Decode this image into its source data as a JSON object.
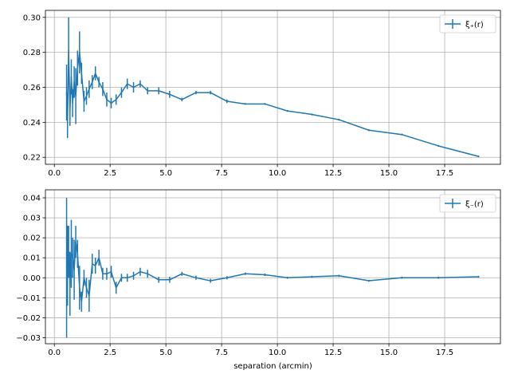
{
  "chart_data": [
    {
      "type": "line",
      "title": "",
      "xlabel": "",
      "ylabel": "",
      "grid": true,
      "legend_position": "top-right",
      "legend_label": "ξ₊(r)",
      "color": "#1f77b4",
      "xlim": [
        -0.4,
        20.0
      ],
      "ylim": [
        0.216,
        0.304
      ],
      "xticks": [
        0.0,
        2.5,
        5.0,
        7.5,
        10.0,
        12.5,
        15.0,
        17.5
      ],
      "xtick_labels": [
        "0.0",
        "2.5",
        "5.0",
        "7.5",
        "10.0",
        "12.5",
        "15.0",
        "17.5"
      ],
      "yticks": [
        0.22,
        0.24,
        0.26,
        0.28,
        0.3
      ],
      "ytick_labels": [
        "0.22",
        "0.24",
        "0.26",
        "0.28",
        "0.30"
      ],
      "series": [
        {
          "x": [
            0.55,
            0.59,
            0.64,
            0.7,
            0.76,
            0.82,
            0.89,
            0.96,
            1.04,
            1.13,
            1.22,
            1.33,
            1.44,
            1.56,
            1.7,
            1.84,
            2.0,
            2.17,
            2.35,
            2.55,
            2.77,
            3.01,
            3.27,
            3.55,
            3.85,
            4.18,
            4.68,
            5.17,
            5.72,
            6.35,
            7.0,
            7.74,
            8.56,
            9.44,
            10.45,
            11.55,
            12.76,
            14.1,
            15.58,
            17.22,
            19.02
          ],
          "y": [
            0.257,
            0.24,
            0.281,
            0.247,
            0.266,
            0.251,
            0.263,
            0.255,
            0.271,
            0.28,
            0.268,
            0.252,
            0.255,
            0.259,
            0.263,
            0.268,
            0.263,
            0.259,
            0.253,
            0.251,
            0.253,
            0.257,
            0.262,
            0.26,
            0.262,
            0.258,
            0.258,
            0.256,
            0.253,
            0.257,
            0.257,
            0.252,
            0.2505,
            0.2505,
            0.2465,
            0.2445,
            0.2415,
            0.2355,
            0.233,
            0.2265,
            0.2205
          ],
          "yerr": [
            0.016,
            0.009,
            0.019,
            0.009,
            0.01,
            0.008,
            0.009,
            0.016,
            0.01,
            0.012,
            0.006,
            0.006,
            0.005,
            0.005,
            0.004,
            0.004,
            0.003,
            0.004,
            0.004,
            0.003,
            0.003,
            0.003,
            0.003,
            0.003,
            0.002,
            0.002,
            0.002,
            0.002,
            0.001,
            0.001,
            0.001,
            0.001,
            0.0005,
            0.0005,
            0.0005,
            0.0005,
            0.0005,
            0.0005,
            0.0005,
            0.0005,
            0.0005
          ]
        }
      ]
    },
    {
      "type": "line",
      "title": "",
      "xlabel": "separation (arcmin)",
      "ylabel": "",
      "grid": true,
      "legend_position": "top-right",
      "legend_label": "ξ₋(r)",
      "color": "#1f77b4",
      "xlim": [
        -0.4,
        20.0
      ],
      "ylim": [
        -0.033,
        0.044
      ],
      "xticks": [
        0.0,
        2.5,
        5.0,
        7.5,
        10.0,
        12.5,
        15.0,
        17.5
      ],
      "xtick_labels": [
        "0.0",
        "2.5",
        "5.0",
        "7.5",
        "10.0",
        "12.5",
        "15.0",
        "17.5"
      ],
      "yticks": [
        -0.03,
        -0.02,
        -0.01,
        0.0,
        0.01,
        0.02,
        0.03,
        0.04
      ],
      "ytick_labels": [
        "−0.03",
        "−0.02",
        "−0.01",
        "0.00",
        "0.01",
        "0.02",
        "0.03",
        "0.04"
      ],
      "series": [
        {
          "x": [
            0.55,
            0.59,
            0.64,
            0.7,
            0.76,
            0.82,
            0.89,
            0.96,
            1.04,
            1.13,
            1.22,
            1.33,
            1.44,
            1.56,
            1.7,
            1.84,
            2.0,
            2.17,
            2.35,
            2.55,
            2.77,
            3.01,
            3.27,
            3.55,
            3.85,
            4.18,
            4.68,
            5.17,
            5.72,
            6.35,
            7.0,
            7.74,
            8.56,
            9.44,
            10.45,
            11.55,
            12.76,
            14.1,
            15.58,
            17.22,
            19.02
          ],
          "y": [
            0.005,
            0.006,
            0.013,
            -0.003,
            0.012,
            0.01,
            0.004,
            0.018,
            0.012,
            -0.005,
            -0.012,
            0.0,
            -0.005,
            -0.009,
            0.007,
            0.006,
            0.01,
            0.002,
            0.002,
            0.003,
            -0.005,
            0.0,
            0.0,
            0.001,
            0.003,
            0.002,
            -0.001,
            -0.001,
            0.002,
            0.0,
            -0.0015,
            0.0,
            0.002,
            0.0015,
            0.0,
            0.0005,
            0.001,
            -0.0015,
            0.0,
            0.0,
            0.0005
          ]
        }
      ],
      "yerr": [
        0.035,
        0.02,
        0.013,
        0.016,
        0.017,
        0.01,
        0.015,
        0.008,
        0.007,
        0.011,
        0.005,
        0.004,
        0.005,
        0.008,
        0.005,
        0.004,
        0.004,
        0.003,
        0.003,
        0.003,
        0.003,
        0.002,
        0.002,
        0.002,
        0.002,
        0.002,
        0.0015,
        0.0015,
        0.001,
        0.001,
        0.001,
        0.0008,
        0.0006,
        0.0006,
        0.0005,
        0.0005,
        0.0005,
        0.0005,
        0.0005,
        0.0005,
        0.0005
      ]
    }
  ]
}
